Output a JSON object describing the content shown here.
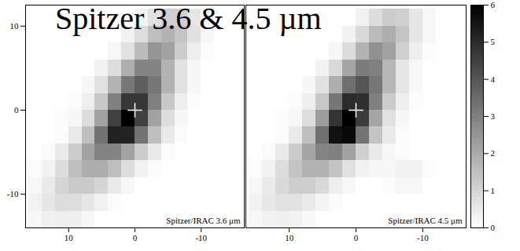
{
  "title": "Spitzer 3.6 & 4.5 µm",
  "colorbar": {
    "range": [
      0,
      6
    ],
    "ticks": [
      0,
      1,
      2,
      3,
      4,
      5,
      6
    ]
  },
  "chart_data": [
    {
      "type": "heatmap",
      "annotations": [
        "Spitzer/IRAC 3.6 μm"
      ],
      "xlim": [
        16.5,
        -16.5
      ],
      "ylim": [
        -14,
        12.5
      ],
      "xticks": [
        10,
        0,
        -10
      ],
      "yticks": [
        -10,
        0,
        10
      ],
      "points": {
        "x": [
          0
        ],
        "y": [
          0
        ],
        "marker": "plus",
        "color": "white"
      },
      "x": [
        15,
        13,
        11,
        9,
        7,
        5,
        3,
        1,
        -1,
        -3,
        -5,
        -7,
        -9,
        -11,
        -13,
        -15
      ],
      "y": [
        11,
        9,
        7,
        5,
        3,
        1,
        -1,
        -3,
        -5,
        -7,
        -9,
        -11,
        -13
      ],
      "z": [
        [
          0,
          0,
          0,
          0,
          0,
          0,
          0,
          0,
          0.3,
          0.7,
          1.1,
          1.1,
          0.6,
          0.2,
          0,
          0
        ],
        [
          0,
          0,
          0,
          0,
          0,
          0,
          0,
          0.3,
          0.8,
          1.5,
          1.8,
          1.4,
          0.7,
          0.2,
          0,
          0
        ],
        [
          0,
          0,
          0,
          0,
          0,
          0,
          0.2,
          0.7,
          1.6,
          2.5,
          2.2,
          1.2,
          0.4,
          0.1,
          0,
          0
        ],
        [
          0,
          0,
          0,
          0,
          0,
          0.3,
          0.8,
          1.9,
          2.9,
          2.9,
          1.8,
          0.7,
          0.2,
          0,
          0,
          0
        ],
        [
          0,
          0,
          0,
          0,
          0.2,
          0.7,
          1.8,
          3.2,
          3.8,
          3.2,
          1.8,
          0.7,
          0.2,
          0,
          0,
          0
        ],
        [
          0,
          0,
          0,
          0.1,
          0.4,
          1.3,
          3,
          4.7,
          4.7,
          3,
          1.3,
          0.4,
          0.1,
          0,
          0,
          0
        ],
        [
          0,
          0,
          0.1,
          0.2,
          0.8,
          2.2,
          4.5,
          6,
          4.5,
          2.2,
          0.8,
          0.2,
          0,
          0,
          0,
          0
        ],
        [
          0,
          0,
          0.1,
          0.5,
          1.5,
          3.3,
          5.2,
          5.2,
          3.3,
          1.5,
          0.5,
          0.1,
          0,
          0,
          0,
          0
        ],
        [
          0,
          0.1,
          0.5,
          1.2,
          2.2,
          2.9,
          2.9,
          2.2,
          1.2,
          0.5,
          0.1,
          0,
          0,
          0,
          0,
          0
        ],
        [
          0.1,
          0.3,
          0.8,
          1.5,
          1.9,
          1.9,
          1.5,
          0.8,
          0.3,
          0.1,
          0,
          0,
          0,
          0,
          0,
          0
        ],
        [
          0.2,
          0.5,
          1,
          1.25,
          1.25,
          1,
          0.5,
          0.2,
          0,
          0,
          0,
          0,
          0,
          0,
          0,
          0
        ],
        [
          0.3,
          0.6,
          0.8,
          0.8,
          0.6,
          0.3,
          0.1,
          0,
          0,
          0,
          0,
          0,
          0,
          0,
          0,
          0
        ],
        [
          0.2,
          0.35,
          0.4,
          0.35,
          0.2,
          0,
          0,
          0,
          0,
          0,
          0,
          0,
          0,
          0,
          0,
          0
        ]
      ]
    },
    {
      "type": "heatmap",
      "annotations": [
        "Spitzer/IRAC 4.5 μm"
      ],
      "xlim": [
        16.5,
        -16.5
      ],
      "ylim": [
        -14,
        12.5
      ],
      "xticks": [
        10,
        0,
        -10
      ],
      "yticks": [
        -10,
        0,
        10
      ],
      "tick_labels": "x",
      "points": {
        "x": [
          0
        ],
        "y": [
          0
        ],
        "marker": "plus",
        "color": "white"
      },
      "x": [
        15,
        13,
        11,
        9,
        7,
        5,
        3,
        1,
        -1,
        -3,
        -5,
        -7,
        -9,
        -11,
        -13,
        -15
      ],
      "y": [
        11,
        9,
        7,
        5,
        3,
        1,
        -1,
        -3,
        -5,
        -7,
        -9,
        -11,
        -13
      ],
      "z": [
        [
          0,
          0,
          0,
          0,
          0,
          0,
          0,
          0,
          0.3,
          0.8,
          1.2,
          1.1,
          0.6,
          0.2,
          0,
          0
        ],
        [
          0,
          0,
          0,
          0,
          0,
          0,
          0,
          0.3,
          0.9,
          1.6,
          1.9,
          1.4,
          0.6,
          0.2,
          0,
          0
        ],
        [
          0,
          0,
          0,
          0,
          0,
          0,
          0.2,
          0.8,
          1.8,
          2.6,
          2.2,
          1.1,
          0.4,
          0.1,
          0,
          0
        ],
        [
          0,
          0,
          0,
          0,
          0,
          0.3,
          0.9,
          2.1,
          3.1,
          3,
          1.7,
          0.6,
          0.2,
          0,
          0,
          0
        ],
        [
          0,
          0,
          0,
          0,
          0.2,
          0.7,
          1.9,
          3.4,
          4,
          3.2,
          1.7,
          0.6,
          0.2,
          0,
          0,
          0
        ],
        [
          0,
          0,
          0,
          0.1,
          0.4,
          1.3,
          3.2,
          5,
          4.9,
          3,
          1.2,
          0.4,
          0.1,
          0,
          0,
          0
        ],
        [
          0,
          0,
          0.1,
          0.2,
          0.8,
          2.3,
          4.8,
          6.3,
          4.6,
          2.1,
          0.7,
          0.2,
          0,
          0,
          0,
          0
        ],
        [
          0,
          0,
          0.1,
          0.5,
          1.5,
          3.4,
          5.6,
          5.8,
          3.3,
          1.4,
          0.5,
          0.1,
          0,
          0,
          0,
          0
        ],
        [
          0,
          0.1,
          0.5,
          1.2,
          2.1,
          2.9,
          3,
          2.2,
          1.1,
          0.5,
          0.2,
          0.1,
          0,
          0,
          0,
          0
        ],
        [
          0.1,
          0.3,
          0.8,
          1.4,
          1.8,
          1.8,
          1.4,
          0.7,
          0.3,
          0.2,
          0.2,
          0.3,
          0.3,
          0.1,
          0,
          0
        ],
        [
          0.2,
          0.5,
          0.9,
          1.15,
          1.15,
          0.9,
          0.4,
          0.2,
          0,
          0,
          0.1,
          0.2,
          0.2,
          0,
          0,
          0
        ],
        [
          0.3,
          0.55,
          0.7,
          0.7,
          0.5,
          0.25,
          0.1,
          0,
          0,
          0,
          0,
          0,
          0,
          0,
          0,
          0
        ],
        [
          0.2,
          0.3,
          0.35,
          0.3,
          0.15,
          0,
          0,
          0,
          0,
          0,
          0,
          0,
          0,
          0,
          0,
          0
        ]
      ]
    }
  ]
}
